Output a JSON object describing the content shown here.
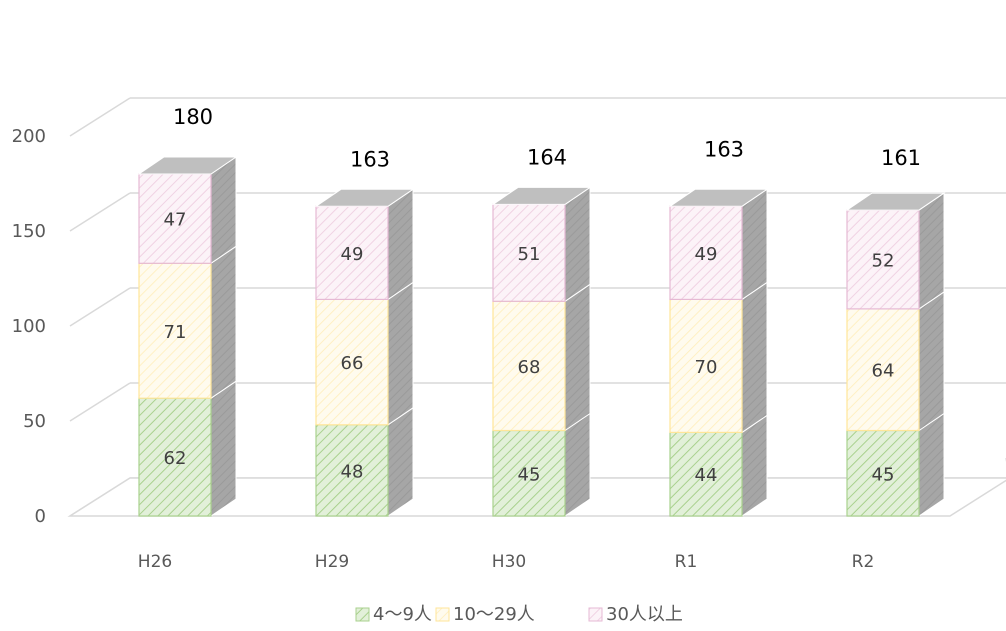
{
  "chart_data": {
    "type": "bar",
    "stacked": true,
    "three_d": true,
    "categories": [
      "H26",
      "H29",
      "H30",
      "R1",
      "R2"
    ],
    "series": [
      {
        "name": "4～9人",
        "values": [
          62,
          48,
          45,
          44,
          45
        ],
        "color": "#a9d18e",
        "fill": "#e2f0d9"
      },
      {
        "name": "10～29人",
        "values": [
          71,
          66,
          68,
          70,
          64
        ],
        "color": "#ffe699",
        "fill": "#fff8e1"
      },
      {
        "name": "30人以上",
        "values": [
          47,
          49,
          51,
          49,
          52
        ],
        "color": "#e6b9d4",
        "fill": "#fbeef6"
      }
    ],
    "totals": [
      180,
      163,
      164,
      163,
      161
    ],
    "yticks": [
      0,
      50,
      100,
      150,
      200
    ],
    "ylim": [
      0,
      200
    ],
    "title": "",
    "xlabel": "",
    "ylabel": "",
    "grid": true,
    "legend_position": "bottom",
    "colors": {
      "side": "#a6a6a6",
      "top": "#bfbfbf",
      "grid": "#d9d9d9"
    }
  }
}
